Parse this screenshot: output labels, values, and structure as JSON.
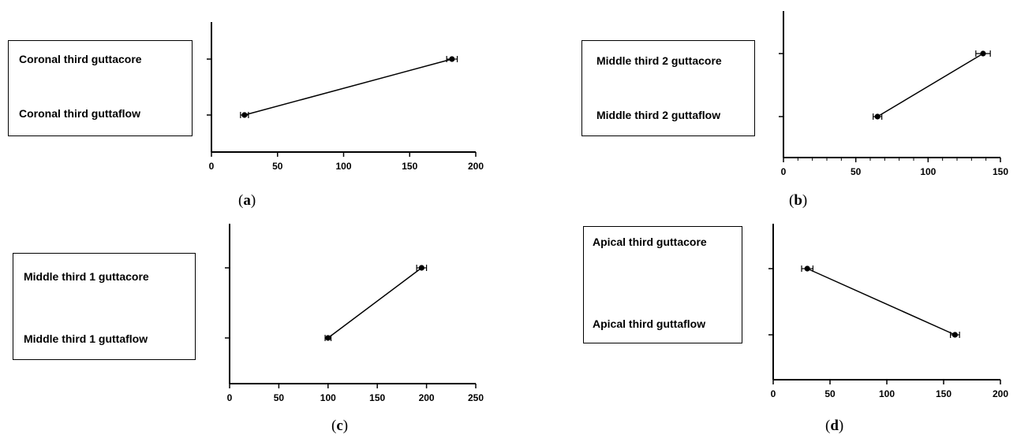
{
  "chart_data": [
    {
      "type": "line",
      "panel": "a",
      "caption_open": "(",
      "caption_letter": "a",
      "caption_close": ")",
      "legend": [
        "Coronal third guttacore",
        "Coronal third guttaflow"
      ],
      "categories": [
        "Coronal third guttacore",
        "Coronal third guttaflow"
      ],
      "points": [
        {
          "category": "Coronal third guttacore",
          "x": 182,
          "err": 4
        },
        {
          "category": "Coronal third guttaflow",
          "x": 25,
          "err": 3
        }
      ],
      "xlim": [
        0,
        200
      ],
      "xticks": [
        0,
        50,
        100,
        150,
        200
      ],
      "minor_ticks": false,
      "ytick_marks": true
    },
    {
      "type": "line",
      "panel": "b",
      "caption_open": "(",
      "caption_letter": "b",
      "caption_close": ")",
      "legend": [
        "Middle third 2 guttacore",
        "Middle third 2 guttaflow"
      ],
      "categories": [
        "Middle third 2 guttacore",
        "Middle third 2 guttaflow"
      ],
      "points": [
        {
          "category": "Middle third 2 guttacore",
          "x": 138,
          "err": 5
        },
        {
          "category": "Middle third 2 guttaflow",
          "x": 65,
          "err": 3
        }
      ],
      "xlim": [
        0,
        150
      ],
      "xticks": [
        0,
        50,
        100,
        150
      ],
      "minor_ticks": true,
      "ytick_marks": true
    },
    {
      "type": "line",
      "panel": "c",
      "caption_open": "(",
      "caption_letter": "c",
      "caption_close": ")",
      "legend": [
        "Middle third 1 guttacore",
        "Middle third 1 guttaflow"
      ],
      "categories": [
        "Middle third 1 guttacore",
        "Middle third 1 guttaflow"
      ],
      "points": [
        {
          "category": "Middle third 1 guttacore",
          "x": 195,
          "err": 5
        },
        {
          "category": "Middle third 1 guttaflow",
          "x": 100,
          "err": 3
        }
      ],
      "xlim": [
        0,
        250
      ],
      "xticks": [
        0,
        50,
        100,
        150,
        200,
        250
      ],
      "minor_ticks": false,
      "ytick_marks": true
    },
    {
      "type": "line",
      "panel": "d",
      "caption_open": "(",
      "caption_letter": "d",
      "caption_close": ")",
      "legend": [
        "Apical third guttacore",
        "Apical third guttaflow"
      ],
      "categories": [
        "Apical third guttacore",
        "Apical third guttaflow"
      ],
      "points": [
        {
          "category": "Apical third guttacore",
          "x": 30,
          "err": 5
        },
        {
          "category": "Apical third guttaflow",
          "x": 160,
          "err": 4
        }
      ],
      "xlim": [
        0,
        200
      ],
      "xticks": [
        0,
        50,
        100,
        150,
        200
      ],
      "minor_ticks": false,
      "ytick_marks": true
    }
  ]
}
